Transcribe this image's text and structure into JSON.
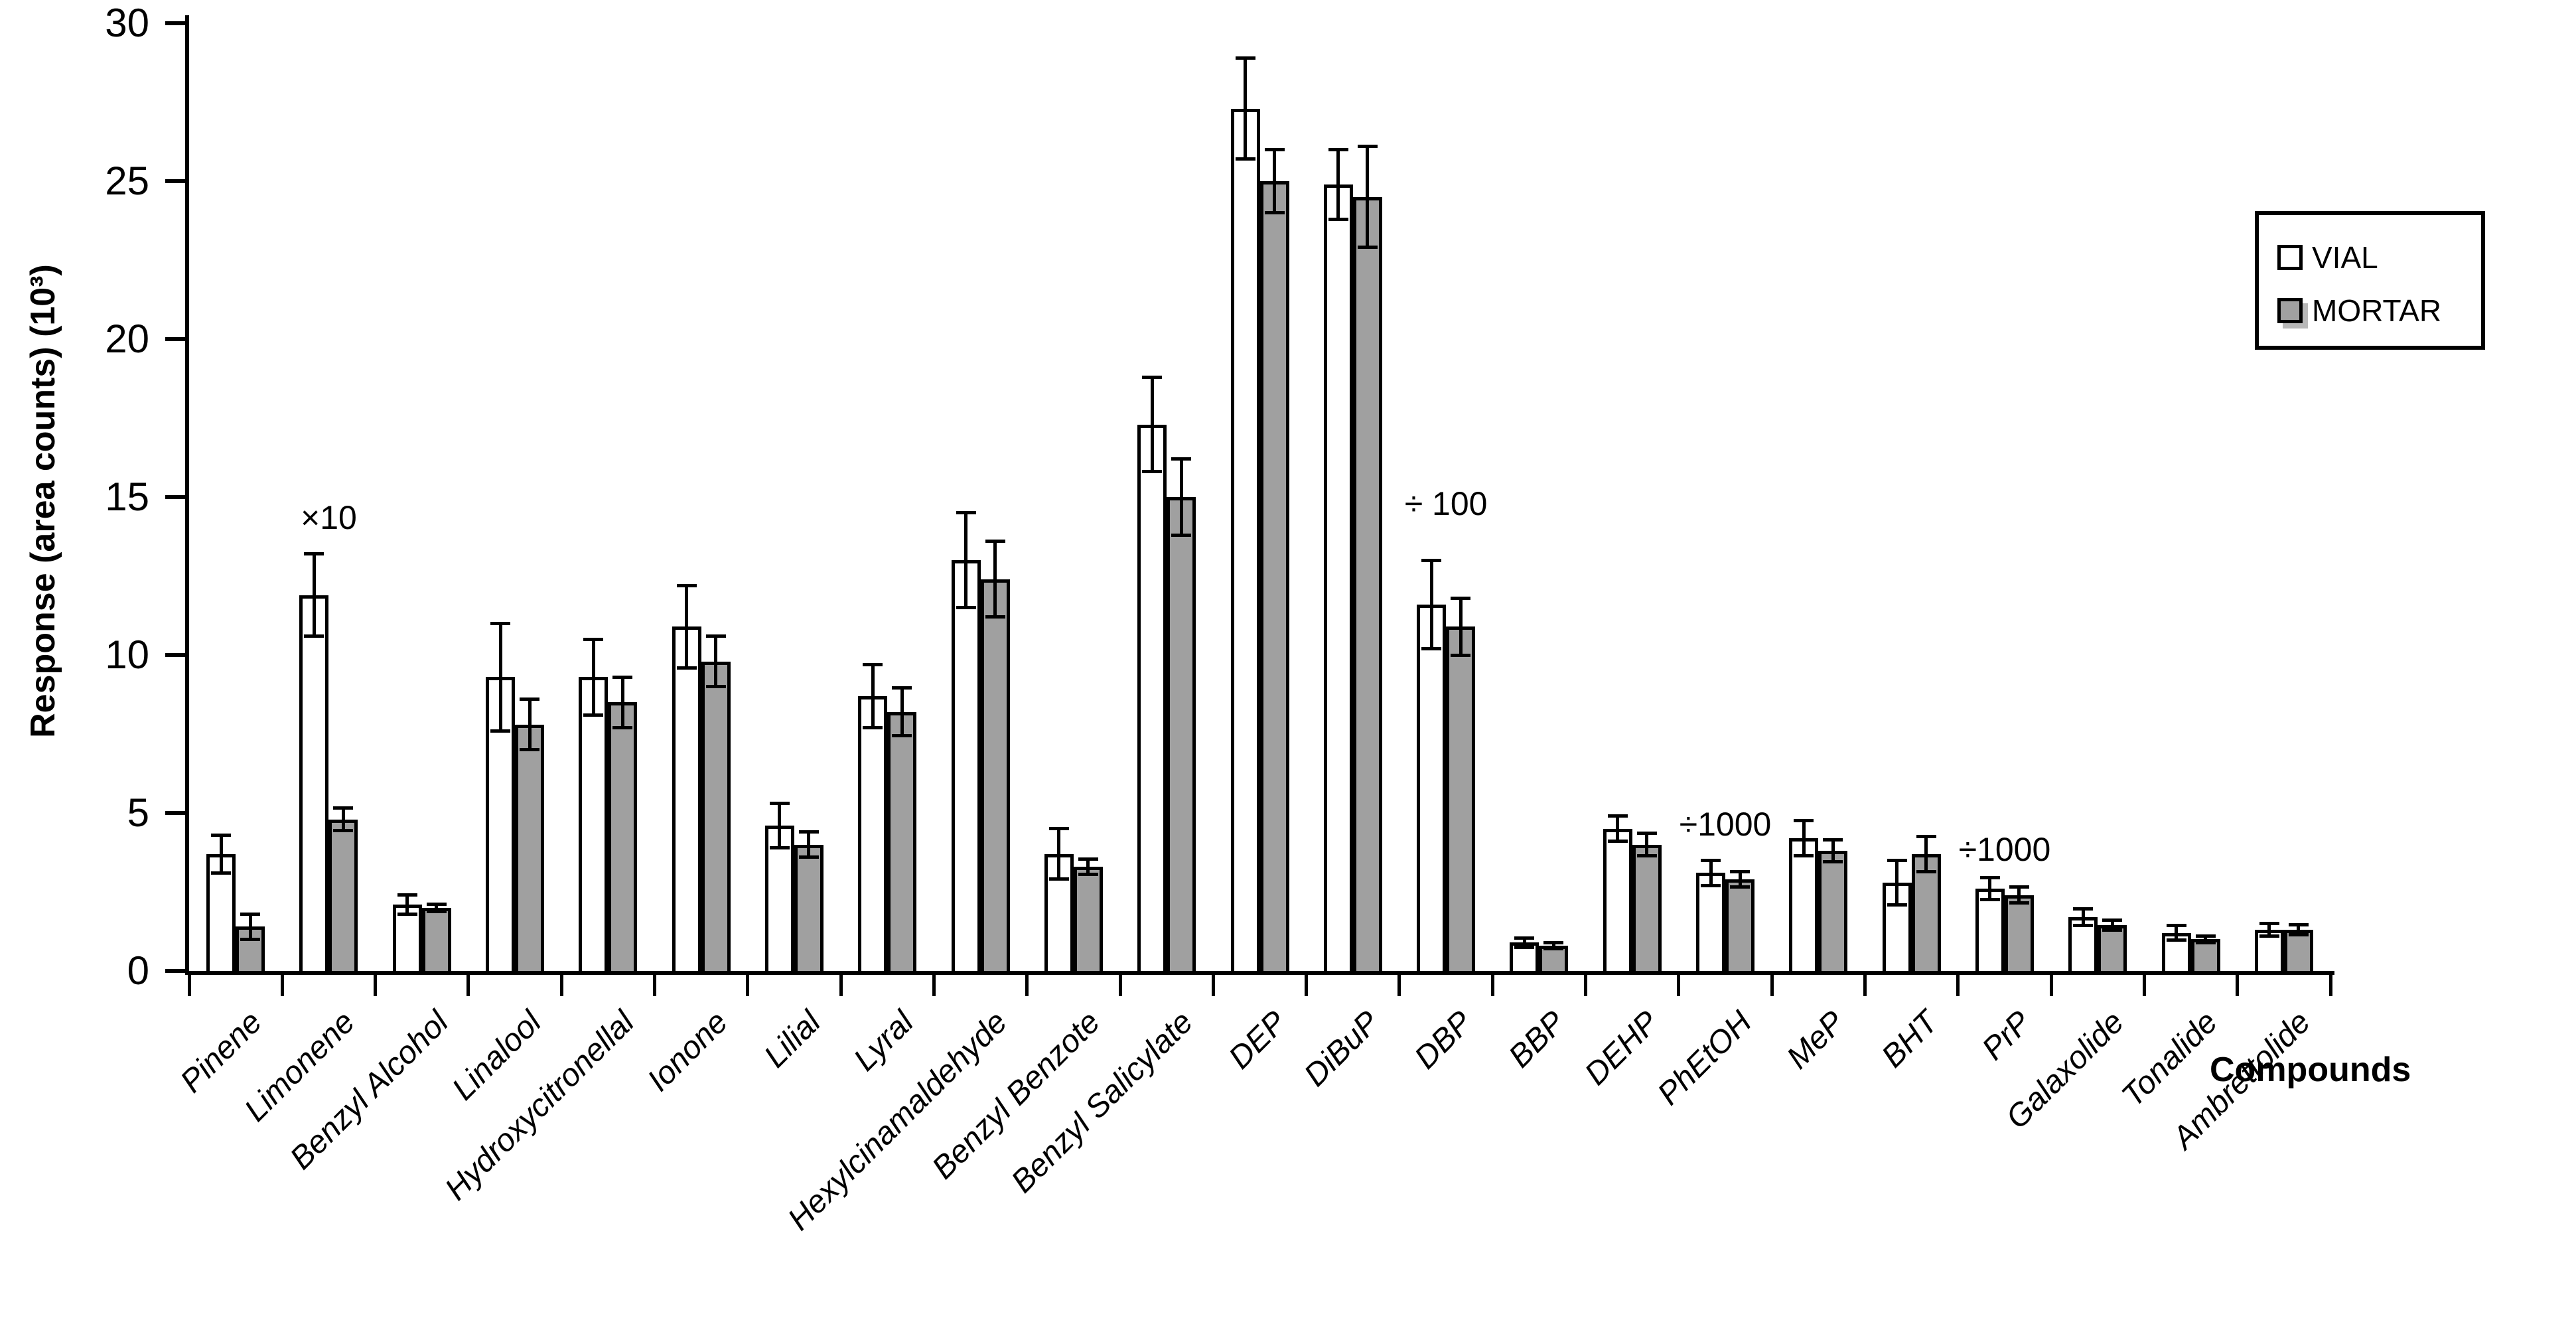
{
  "chart_data": {
    "type": "bar",
    "title": "",
    "ylabel": "Response (area counts) (10³)",
    "xlabel": "Compounds",
    "ylim": [
      0,
      30
    ],
    "yticks": [
      0,
      5,
      10,
      15,
      20,
      25,
      30
    ],
    "grid": false,
    "legend_position": "top-right",
    "bar_border_color": "#000000",
    "categories": [
      "Pinene",
      "Limonene",
      "Benzyl Alcohol",
      "Linalool",
      "Hydroxycitronellal",
      "Ionone",
      "Lilial",
      "Lyral",
      "Hexylcinamaldehyde",
      "Benzyl Benzote",
      "Benzyl Salicylate",
      "DEP",
      "DiBuP",
      "DBP",
      "BBP",
      "DEHP",
      "PhEtOH",
      "MeP",
      "BHT",
      "PrP",
      "Galaxolide",
      "Tonalide",
      "Ambrettolide"
    ],
    "series": [
      {
        "name": "VIAL",
        "color": "#FFFFFF",
        "values": [
          3.7,
          11.9,
          2.1,
          9.3,
          9.3,
          10.9,
          4.6,
          8.7,
          13.0,
          3.7,
          17.3,
          27.3,
          24.9,
          11.6,
          0.9,
          4.5,
          3.1,
          4.2,
          2.8,
          2.6,
          1.7,
          1.2,
          1.3
        ],
        "errors": [
          0.6,
          1.3,
          0.3,
          1.7,
          1.2,
          1.3,
          0.7,
          1.0,
          1.5,
          0.8,
          1.5,
          1.6,
          1.1,
          1.4,
          0.15,
          0.4,
          0.4,
          0.55,
          0.7,
          0.35,
          0.27,
          0.23,
          0.2
        ]
      },
      {
        "name": "MORTAR",
        "color": "#A0A0A0",
        "values": [
          1.4,
          4.8,
          2.0,
          7.8,
          8.5,
          9.8,
          4.0,
          8.2,
          12.4,
          3.3,
          15.0,
          25.0,
          24.5,
          10.9,
          0.8,
          4.0,
          2.9,
          3.8,
          3.7,
          2.4,
          1.45,
          1.0,
          1.3
        ],
        "errors": [
          0.4,
          0.35,
          0.12,
          0.8,
          0.8,
          0.8,
          0.4,
          0.75,
          1.2,
          0.25,
          1.2,
          1.0,
          1.6,
          0.9,
          0.1,
          0.35,
          0.25,
          0.35,
          0.55,
          0.25,
          0.15,
          0.1,
          0.15
        ]
      }
    ],
    "annotations": [
      {
        "text": "×10",
        "category": "Limonene",
        "y": 14.35
      },
      {
        "text": "÷ 100",
        "category": "DBP",
        "y": 14.8
      },
      {
        "text": "÷1000",
        "category": "PhEtOH",
        "y": 4.65
      },
      {
        "text": "÷1000",
        "category": "PrP",
        "y": 3.85
      }
    ]
  }
}
